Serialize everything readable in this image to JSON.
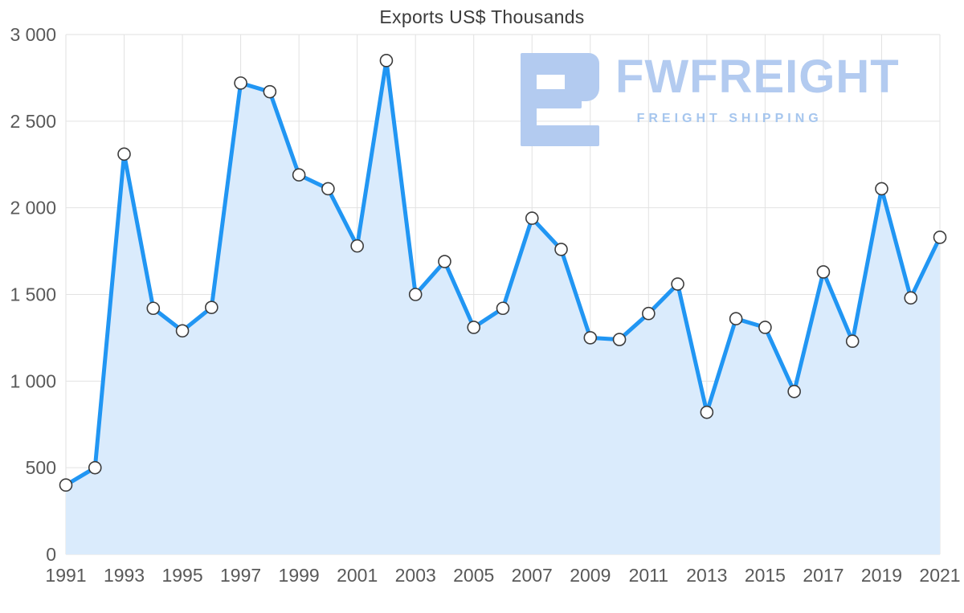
{
  "title": "Exports US$ Thousands",
  "logo": {
    "brand": "FWFREIGHT",
    "tagline": "FREIGHT SHIPPING",
    "brand_color": "#b3cbf0",
    "tagline_color": "#a6c6ee",
    "icon": "freight-logo-icon",
    "icon_color": "#b3cbf0"
  },
  "chart_data": {
    "type": "area",
    "title": "Exports US$ Thousands",
    "x": [
      1991,
      1992,
      1993,
      1994,
      1995,
      1996,
      1997,
      1998,
      1999,
      2000,
      2001,
      2002,
      2003,
      2004,
      2005,
      2006,
      2007,
      2008,
      2009,
      2010,
      2011,
      2012,
      2013,
      2014,
      2015,
      2016,
      2017,
      2018,
      2019,
      2020,
      2021
    ],
    "values": [
      400,
      500,
      2310,
      1420,
      1290,
      1425,
      2720,
      2670,
      2190,
      2110,
      1780,
      2850,
      1500,
      1690,
      1310,
      1420,
      1940,
      1760,
      1250,
      1240,
      1390,
      1560,
      820,
      1360,
      1310,
      940,
      1630,
      1230,
      2110,
      1480,
      1830
    ],
    "xticks": [
      "1991",
      "1993",
      "1995",
      "1997",
      "1999",
      "2001",
      "2003",
      "2005",
      "2007",
      "2009",
      "2011",
      "2013",
      "2015",
      "2017",
      "2019",
      "2021"
    ],
    "yticks": [
      {
        "value": 0,
        "label": "0"
      },
      {
        "value": 500,
        "label": "500"
      },
      {
        "value": 1000,
        "label": "1 000"
      },
      {
        "value": 1500,
        "label": "1 500"
      },
      {
        "value": 2000,
        "label": "2 000"
      },
      {
        "value": 2500,
        "label": "2 500"
      },
      {
        "value": 3000,
        "label": "3 000"
      }
    ],
    "ylim": [
      0,
      3000
    ],
    "xlabel": "",
    "ylabel": "",
    "grid": true,
    "legend": "none",
    "colors": {
      "line": "#2196f3",
      "fill": "#daebfc",
      "marker_fill": "#ffffff",
      "marker_stroke": "#3c3c3c",
      "grid": "#e2e2e2",
      "axis_text": "#595959",
      "title_text": "#3b3b3b"
    }
  }
}
